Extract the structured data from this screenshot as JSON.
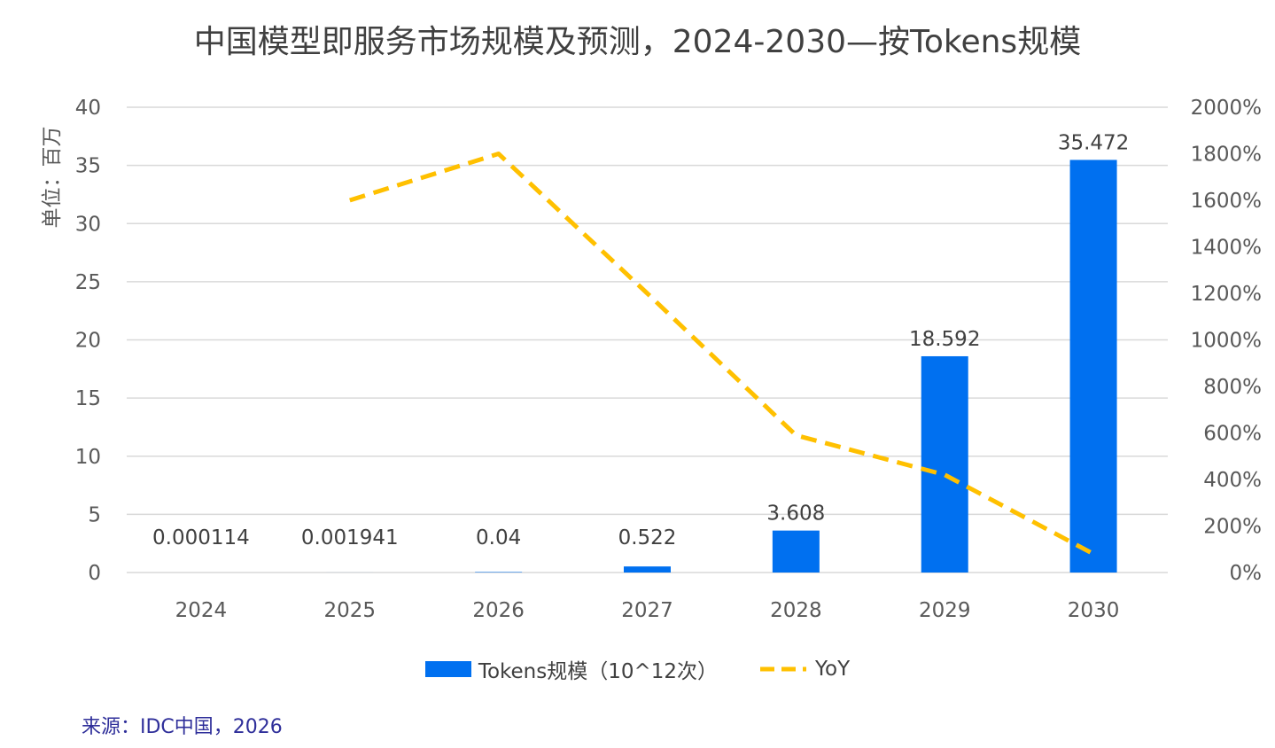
{
  "chart_data": {
    "type": "bar",
    "title": "中国模型即服务市场规模及预测，2024-2030—按Tokens规模",
    "ylabel": "单位：百万",
    "categories": [
      "2024",
      "2025",
      "2026",
      "2027",
      "2028",
      "2029",
      "2030"
    ],
    "series": [
      {
        "name": "Tokens规模（10^12次）",
        "type": "bar",
        "axis": "left",
        "color": "#0070f0",
        "values": [
          0.000114,
          0.001941,
          0.04,
          0.522,
          3.608,
          18.592,
          35.472
        ],
        "labels": [
          "0.000114",
          "0.001941",
          "0.04",
          "0.522",
          "3.608",
          "18.592",
          "35.472"
        ]
      },
      {
        "name": "YoY",
        "type": "line",
        "style": "dashed",
        "axis": "right",
        "color": "#ffc000",
        "values": [
          null,
          16.0,
          18.0,
          12.0,
          5.9,
          4.2,
          0.8
        ]
      }
    ],
    "ylim": [
      0,
      40
    ],
    "yticks": [
      "0",
      "5",
      "10",
      "15",
      "20",
      "25",
      "30",
      "35",
      "40"
    ],
    "y2lim": [
      0,
      20
    ],
    "y2ticks": [
      "0%",
      "200%",
      "400%",
      "600%",
      "800%",
      "1000%",
      "1200%",
      "1400%",
      "1600%",
      "1800%",
      "2000%"
    ],
    "grid": true,
    "legend_position": "bottom"
  },
  "source": "来源：IDC中国，2026"
}
